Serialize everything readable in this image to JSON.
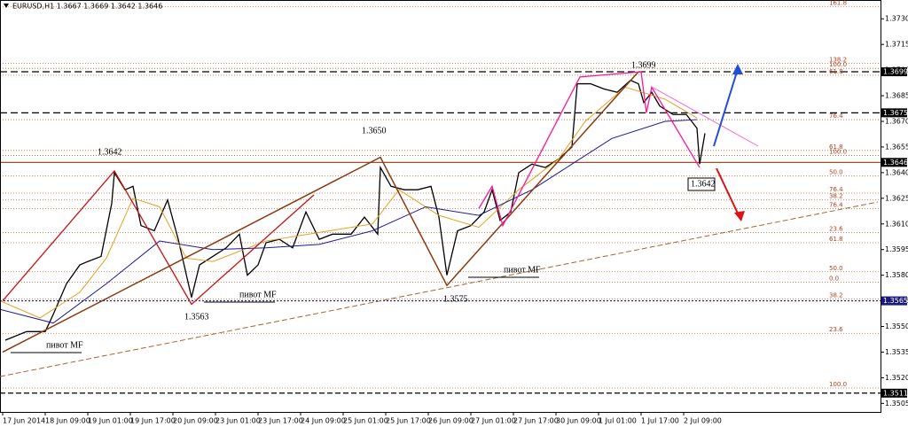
{
  "chart_data": {
    "type": "line",
    "title": "EURUSD,H1  1.3667 1.3669 1.3642 1.3646",
    "xlim": [
      0,
      331
    ],
    "ylim": [
      1.35,
      1.3741
    ],
    "xticks": [
      {
        "value": 1,
        "label": "17 Jun 2014"
      },
      {
        "value": 17,
        "label": "18 Jun 09:00"
      },
      {
        "value": 33,
        "label": "19 Jun 01:00"
      },
      {
        "value": 49,
        "label": "19 Jun 17:00"
      },
      {
        "value": 65,
        "label": "20 Jun 09:00"
      },
      {
        "value": 81,
        "label": "23 Jun 01:00"
      },
      {
        "value": 97,
        "label": "23 Jun 17:00"
      },
      {
        "value": 113,
        "label": "24 Jun 09:00"
      },
      {
        "value": 129,
        "label": "25 Jun 01:00"
      },
      {
        "value": 145,
        "label": "25 Jun 17:00"
      },
      {
        "value": 161,
        "label": "26 Jun 09:00"
      },
      {
        "value": 177,
        "label": "27 Jun 01:00"
      },
      {
        "value": 193,
        "label": "27 Jun 17:00"
      },
      {
        "value": 209,
        "label": "30 Jun 09:00"
      },
      {
        "value": 225,
        "label": "1 Jul 01:00"
      },
      {
        "value": 241,
        "label": "1 Jul 17:00"
      },
      {
        "value": 257,
        "label": "2 Jul 09:00"
      }
    ],
    "yticks": [
      {
        "value": 1.373,
        "label": "1.3730"
      },
      {
        "value": 1.3715,
        "label": "1.3715"
      },
      {
        "value": 1.37,
        "label": "1.3700"
      },
      {
        "value": 1.3685,
        "label": "1.3685"
      },
      {
        "value": 1.367,
        "label": "1.3670"
      },
      {
        "value": 1.3655,
        "label": "1.3655"
      },
      {
        "value": 1.364,
        "label": "1.3640"
      },
      {
        "value": 1.3625,
        "label": "1.3625"
      },
      {
        "value": 1.361,
        "label": "1.3610"
      },
      {
        "value": 1.3595,
        "label": "1.3595"
      },
      {
        "value": 1.358,
        "label": "1.3580"
      },
      {
        "value": 1.3565,
        "label": "1.3565"
      },
      {
        "value": 1.355,
        "label": "1.3550"
      },
      {
        "value": 1.3535,
        "label": "1.3535"
      },
      {
        "value": 1.352,
        "label": "1.3520"
      },
      {
        "value": 1.3505,
        "label": "1.3505"
      }
    ],
    "series": [
      {
        "color": "#000000",
        "width": 1.3,
        "x": [
          2,
          10,
          17,
          20,
          25,
          30,
          33,
          38,
          42,
          43,
          47,
          50,
          53,
          58,
          63,
          67,
          72,
          75,
          80,
          85,
          90,
          93,
          97,
          100,
          105,
          110,
          115,
          120,
          125,
          132,
          137,
          142,
          143,
          147,
          152,
          157,
          162,
          165,
          168,
          172,
          177,
          182,
          185,
          188,
          192,
          195,
          200,
          205,
          210,
          215,
          217,
          222,
          227,
          232,
          237,
          240,
          242,
          245,
          248,
          253,
          258,
          262,
          263,
          265
        ],
        "values": [
          1.3542,
          1.3547,
          1.3547,
          1.3557,
          1.3575,
          1.3586,
          1.3588,
          1.3591,
          1.3622,
          1.364,
          1.363,
          1.3632,
          1.3609,
          1.3606,
          1.3624,
          1.3601,
          1.3567,
          1.3586,
          1.3591,
          1.3596,
          1.3604,
          1.358,
          1.3586,
          1.3599,
          1.3601,
          1.3596,
          1.3617,
          1.3601,
          1.3604,
          1.3604,
          1.3614,
          1.3604,
          1.3643,
          1.3632,
          1.363,
          1.363,
          1.3632,
          1.3614,
          1.358,
          1.3606,
          1.3609,
          1.3617,
          1.363,
          1.3612,
          1.3617,
          1.364,
          1.3645,
          1.3643,
          1.3648,
          1.3655,
          1.3692,
          1.3692,
          1.3689,
          1.3687,
          1.3694,
          1.3692,
          1.3681,
          1.3687,
          1.3679,
          1.3674,
          1.3674,
          1.3666,
          1.3645,
          1.3663
        ]
      },
      {
        "color": "#e8a020",
        "width": 1,
        "x": [
          0,
          15,
          30,
          40,
          50,
          60,
          70,
          80,
          100,
          120,
          140,
          150,
          165,
          180,
          195,
          210,
          220,
          235,
          250,
          262
        ],
        "values": [
          1.3565,
          1.3555,
          1.357,
          1.359,
          1.3625,
          1.362,
          1.359,
          1.3588,
          1.36,
          1.3605,
          1.361,
          1.363,
          1.3615,
          1.3608,
          1.363,
          1.3648,
          1.367,
          1.369,
          1.3683,
          1.3672
        ]
      },
      {
        "color": "#1a1a9a",
        "width": 1,
        "x": [
          0,
          20,
          40,
          60,
          80,
          100,
          120,
          140,
          160,
          180,
          200,
          215,
          230,
          250,
          262
        ],
        "values": [
          1.356,
          1.3552,
          1.3575,
          1.36,
          1.3595,
          1.3596,
          1.3598,
          1.3606,
          1.362,
          1.3615,
          1.363,
          1.3645,
          1.366,
          1.367,
          1.3671
        ]
      },
      {
        "color": "#cc1010",
        "width": 1.3,
        "x": [
          1,
          43,
          72,
          118
        ],
        "values": [
          1.3565,
          1.3641,
          1.3563,
          1.3627
        ]
      },
      {
        "color": "#8b3a10",
        "width": 1.5,
        "x": [
          1,
          143,
          168,
          240
        ],
        "values": [
          1.3535,
          1.3649,
          1.3574,
          1.3699
        ]
      },
      {
        "color": "#ff1493",
        "width": 1.3,
        "x": [
          180,
          185,
          189,
          218,
          241,
          243,
          245,
          263
        ],
        "values": [
          1.3619,
          1.3632,
          1.3609,
          1.3696,
          1.3699,
          1.3675,
          1.369,
          1.3643
        ]
      }
    ],
    "levels": [
      {
        "value": 1.3699,
        "color": "#000000",
        "dash": "8 4",
        "box": "#000000"
      },
      {
        "value": 1.3675,
        "color": "#000000",
        "dash": "8 4",
        "box": "#000000"
      },
      {
        "value": 1.3646,
        "color": "#8b3a10",
        "dash": "none",
        "box": "#000000"
      },
      {
        "value": 1.3565,
        "color": "#1a1a7a",
        "dash": "2 2",
        "box": "#1a1a7a"
      },
      {
        "value": 1.3511,
        "color": "#000000",
        "dash": "6 3",
        "box": "#000000"
      }
    ],
    "fib_levels": [
      {
        "value": 161.8,
        "price": 1.3737
      },
      {
        "value": 138.2,
        "price": 1.3704
      },
      {
        "value": 100,
        "label": "100.0",
        "price": 1.3701
      },
      {
        "value": 61.8,
        "price": 1.3697
      },
      {
        "value": 76.4,
        "price": 1.3671
      },
      {
        "value": 61.8,
        "price": 1.3653
      },
      {
        "value": 100,
        "label": "100.0",
        "price": 1.365
      },
      {
        "value": 50,
        "label": "50.0",
        "price": 1.3638
      },
      {
        "value": 76.4,
        "price": 1.3628
      },
      {
        "value": 38.2,
        "price": 1.3624
      },
      {
        "value": 76.4,
        "price": 1.3619
      },
      {
        "value": 23.6,
        "price": 1.3605
      },
      {
        "value": 61.8,
        "price": 1.3599
      },
      {
        "value": 50,
        "label": "50.0",
        "price": 1.3582
      },
      {
        "value": 0,
        "label": "0.0",
        "price": 1.3576
      },
      {
        "value": 38.2,
        "price": 1.3566
      },
      {
        "value": 23.6,
        "price": 1.3546
      },
      {
        "value": 100,
        "label": "100.0",
        "price": 1.3514
      }
    ],
    "annotations": [
      "1.3642",
      "1.3650",
      "1.3699",
      "1.3563",
      "1.3575",
      "1.3642",
      "пивот MF",
      "пивот MF",
      "пивот MF"
    ]
  }
}
